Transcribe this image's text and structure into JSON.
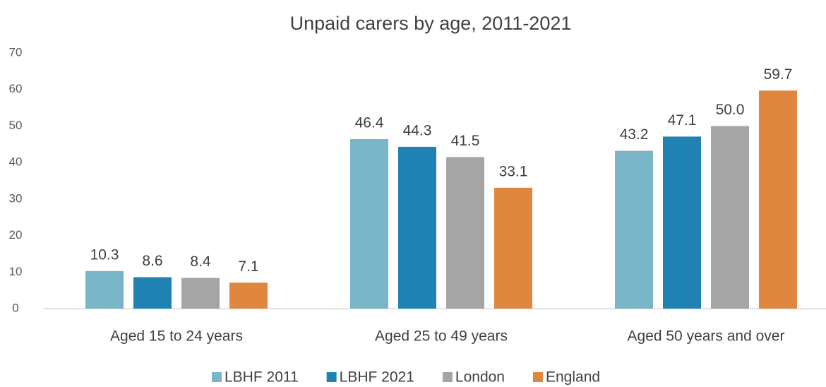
{
  "chart_data": {
    "type": "bar",
    "title": "Unpaid carers by age, 2011-2021",
    "categories": [
      "Aged 15 to 24 years",
      "Aged 25 to 49 years",
      "Aged 50 years and over"
    ],
    "series": [
      {
        "name": "LBHF 2011",
        "color": "#7ab5c7",
        "values": [
          10.3,
          46.4,
          43.2
        ],
        "value_labels": [
          "10.3",
          "46.4",
          "43.2"
        ]
      },
      {
        "name": "LBHF 2021",
        "color": "#1f82b3",
        "values": [
          8.6,
          44.3,
          47.1
        ],
        "value_labels": [
          "8.6",
          "44.3",
          "47.1"
        ]
      },
      {
        "name": "London",
        "color": "#a5a5a5",
        "values": [
          8.4,
          41.5,
          50.0
        ],
        "value_labels": [
          "8.4",
          "41.5",
          "50.0"
        ]
      },
      {
        "name": "England",
        "color": "#e0873f",
        "values": [
          7.1,
          33.1,
          59.7
        ],
        "value_labels": [
          "7.1",
          "33.1",
          "59.7"
        ]
      }
    ],
    "ylim": [
      0,
      70
    ],
    "yticks": [
      0,
      10,
      20,
      30,
      40,
      50,
      60,
      70
    ],
    "grid": false,
    "legend": "bottom"
  }
}
